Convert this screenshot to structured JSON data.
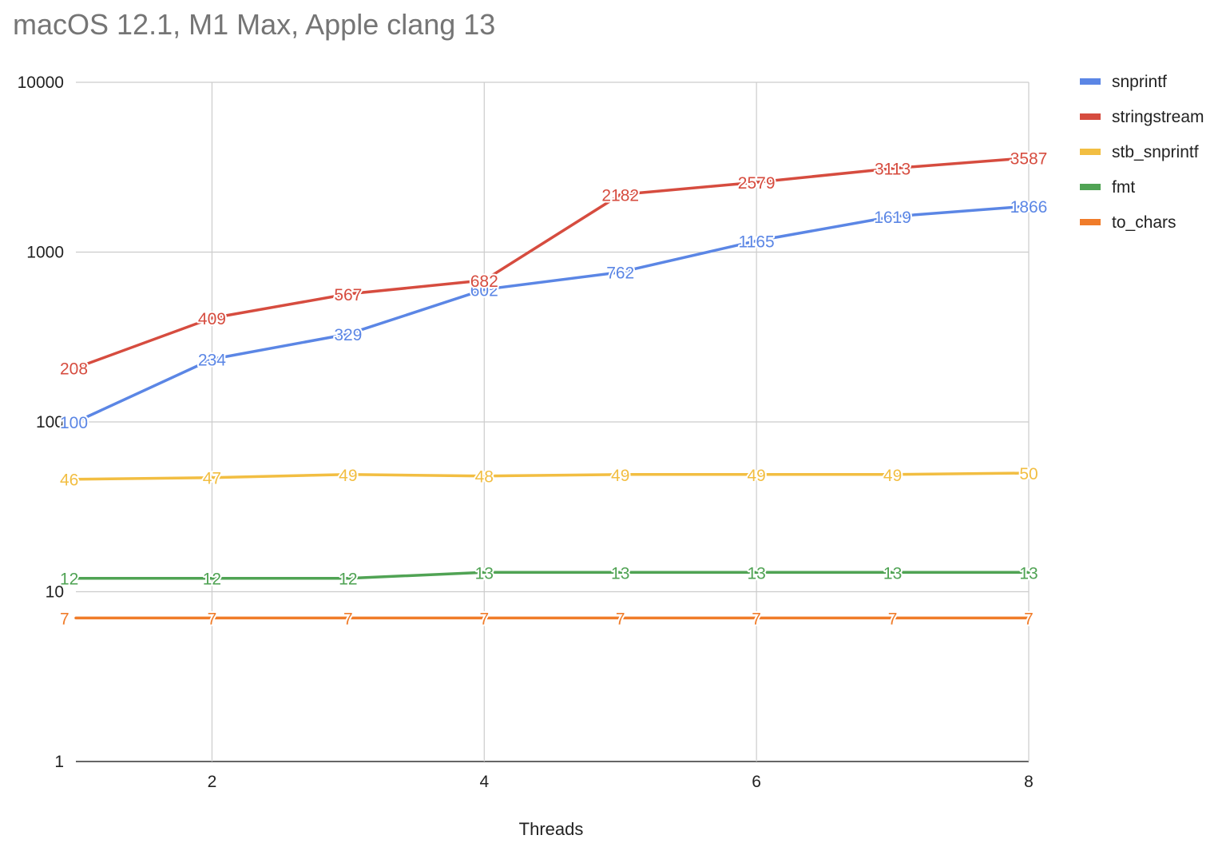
{
  "chart_data": {
    "type": "line",
    "title": "macOS 12.1, M1 Max, Apple clang 13",
    "xlabel": "Threads",
    "ylabel": "",
    "x": [
      1,
      2,
      3,
      4,
      5,
      6,
      7,
      8
    ],
    "xlim": [
      1,
      8
    ],
    "x_ticks": [
      2,
      4,
      6,
      8
    ],
    "y_scale": "log",
    "ylim": [
      1,
      10000
    ],
    "y_ticks": [
      1,
      10,
      100,
      1000,
      10000
    ],
    "grid": true,
    "legend_position": "right",
    "series": [
      {
        "name": "snprintf",
        "color": "#5b86e5",
        "values": [
          100,
          234,
          329,
          602,
          762,
          1165,
          1619,
          1866
        ],
        "labels": [
          "100",
          "234",
          "329",
          "602",
          "762",
          "1165",
          "1619",
          "1866"
        ]
      },
      {
        "name": "stringstream",
        "color": "#d64c3f",
        "values": [
          208,
          409,
          567,
          682,
          2182,
          2579,
          3113,
          3587
        ],
        "labels": [
          "208",
          "409",
          "567",
          "682",
          "2182",
          "2579",
          "3113",
          "3587"
        ]
      },
      {
        "name": "stb_snprintf",
        "color": "#f2be42",
        "values": [
          46,
          47,
          49,
          48,
          49,
          49,
          49,
          50
        ],
        "labels": [
          "46",
          "47",
          "49",
          "48",
          "49",
          "49",
          "49",
          "50"
        ]
      },
      {
        "name": "fmt",
        "color": "#50a354",
        "values": [
          12,
          12,
          12,
          13,
          13,
          13,
          13,
          13
        ],
        "labels": [
          "12",
          "12",
          "12",
          "13",
          "13",
          "13",
          "13",
          "13"
        ]
      },
      {
        "name": "to_chars",
        "color": "#f07c2a",
        "values": [
          7,
          7,
          7,
          7,
          7,
          7,
          7,
          7
        ],
        "labels": [
          "7",
          "7",
          "7",
          "7",
          "7",
          "7",
          "7",
          "7"
        ]
      }
    ]
  }
}
